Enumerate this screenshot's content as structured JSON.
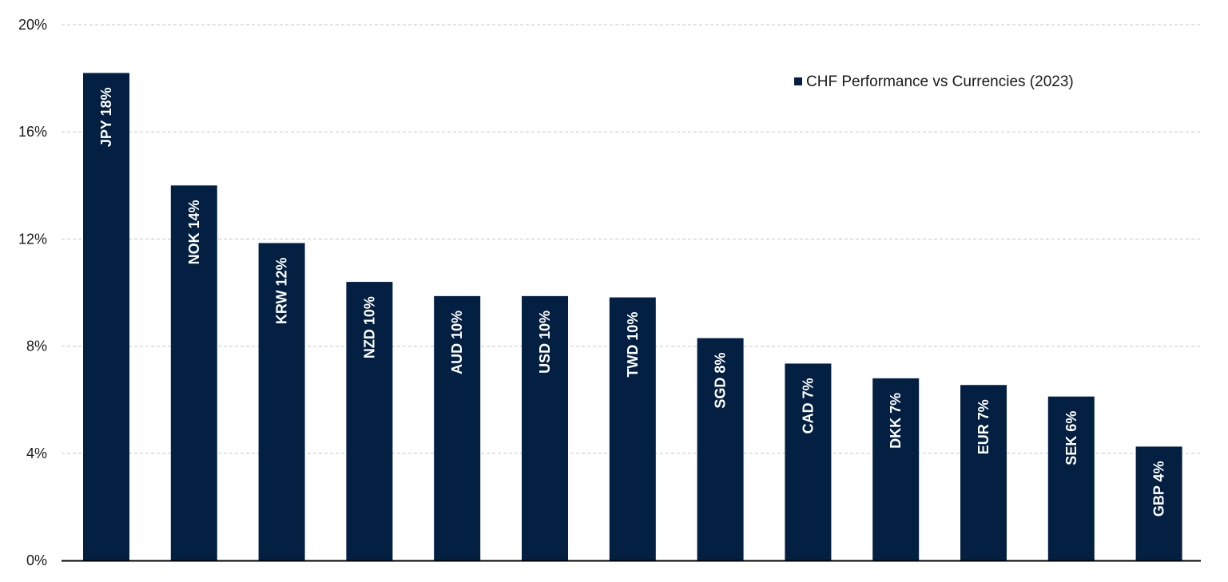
{
  "chart_data": {
    "type": "bar",
    "categories": [
      "JPY",
      "NOK",
      "KRW",
      "NZD",
      "AUD",
      "USD",
      "TWD",
      "SGD",
      "CAD",
      "DKK",
      "EUR",
      "SEK",
      "GBP"
    ],
    "series": [
      {
        "name": "CHF Performance vs Currencies (2023)",
        "values": [
          18.2,
          14.0,
          11.85,
          10.4,
          9.87,
          9.87,
          9.82,
          8.3,
          7.35,
          6.8,
          6.55,
          6.12,
          4.25
        ],
        "data_labels": [
          "JPY 18%",
          "NOK 14%",
          "KRW 12%",
          "NZD 10%",
          "AUD 10%",
          "USD 10%",
          "TWD 10%",
          "SGD 8%",
          "CAD 7%",
          "DKK 7%",
          "EUR 7%",
          "SEK 6%",
          "GBP 4%"
        ]
      }
    ],
    "ylim": [
      0,
      20
    ],
    "yticks": [
      0,
      4,
      8,
      12,
      16,
      20
    ],
    "ytick_labels": [
      "0%",
      "4%",
      "8%",
      "12%",
      "16%",
      "20%"
    ],
    "title": "",
    "xlabel": "",
    "ylabel": "",
    "grid": true,
    "grid_style": "dashed",
    "legend_position": "top-right",
    "bar_color": "#031f42"
  }
}
